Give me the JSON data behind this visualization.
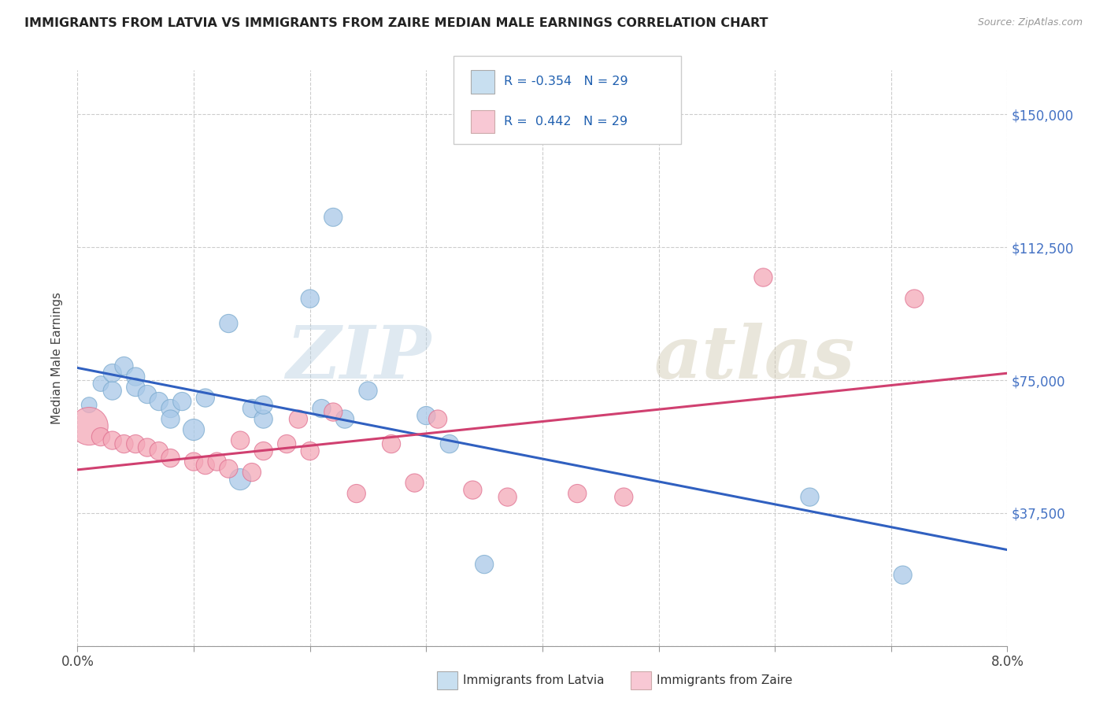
{
  "title": "IMMIGRANTS FROM LATVIA VS IMMIGRANTS FROM ZAIRE MEDIAN MALE EARNINGS CORRELATION CHART",
  "source": "Source: ZipAtlas.com",
  "ylabel": "Median Male Earnings",
  "xlim": [
    0,
    0.08
  ],
  "ylim": [
    0,
    162500
  ],
  "yticks": [
    0,
    37500,
    75000,
    112500,
    150000
  ],
  "ytick_labels": [
    "",
    "$37,500",
    "$75,000",
    "$112,500",
    "$150,000"
  ],
  "xtick_positions": [
    0.0,
    0.01,
    0.02,
    0.03,
    0.04,
    0.05,
    0.06,
    0.07,
    0.08
  ],
  "xtick_labels_show": [
    "0.0%",
    "",
    "",
    "",
    "",
    "",
    "",
    "",
    "8.0%"
  ],
  "legend_r_latvia": "-0.354",
  "legend_r_zaire": " 0.442",
  "legend_n": "29",
  "blue_color": "#a8c8e8",
  "pink_color": "#f4a8b8",
  "blue_edge_color": "#7aaace",
  "pink_edge_color": "#e07090",
  "blue_line_color": "#3060c0",
  "pink_line_color": "#d04070",
  "legend_blue_bg": "#c8dff0",
  "legend_pink_bg": "#f8c8d4",
  "grid_color": "#cccccc",
  "watermark_zip": "ZIP",
  "watermark_atlas": "atlas",
  "latvia_x": [
    0.001,
    0.002,
    0.003,
    0.003,
    0.004,
    0.005,
    0.005,
    0.006,
    0.007,
    0.008,
    0.008,
    0.009,
    0.01,
    0.011,
    0.013,
    0.014,
    0.015,
    0.016,
    0.016,
    0.02,
    0.021,
    0.022,
    0.023,
    0.025,
    0.03,
    0.032,
    0.035,
    0.063,
    0.071
  ],
  "latvia_y": [
    68000,
    74000,
    77000,
    72000,
    79000,
    76000,
    73000,
    71000,
    69000,
    67000,
    64000,
    69000,
    61000,
    70000,
    91000,
    47000,
    67000,
    64000,
    68000,
    98000,
    67000,
    121000,
    64000,
    72000,
    65000,
    57000,
    23000,
    42000,
    20000
  ],
  "latvia_sizes": [
    200,
    200,
    280,
    280,
    280,
    280,
    280,
    280,
    280,
    280,
    280,
    280,
    380,
    280,
    280,
    380,
    280,
    280,
    280,
    280,
    280,
    280,
    280,
    280,
    280,
    280,
    280,
    280,
    280
  ],
  "zaire_x": [
    0.001,
    0.002,
    0.003,
    0.004,
    0.005,
    0.006,
    0.007,
    0.008,
    0.01,
    0.011,
    0.012,
    0.013,
    0.014,
    0.015,
    0.016,
    0.018,
    0.019,
    0.02,
    0.022,
    0.024,
    0.027,
    0.029,
    0.031,
    0.034,
    0.037,
    0.043,
    0.047,
    0.059,
    0.072
  ],
  "zaire_y": [
    62000,
    59000,
    58000,
    57000,
    57000,
    56000,
    55000,
    53000,
    52000,
    51000,
    52000,
    50000,
    58000,
    49000,
    55000,
    57000,
    64000,
    55000,
    66000,
    43000,
    57000,
    46000,
    64000,
    44000,
    42000,
    43000,
    42000,
    104000,
    98000
  ],
  "zaire_sizes": [
    1200,
    280,
    280,
    280,
    280,
    280,
    280,
    280,
    280,
    280,
    280,
    280,
    280,
    280,
    280,
    280,
    280,
    280,
    280,
    280,
    280,
    280,
    280,
    280,
    280,
    280,
    280,
    280,
    280
  ]
}
